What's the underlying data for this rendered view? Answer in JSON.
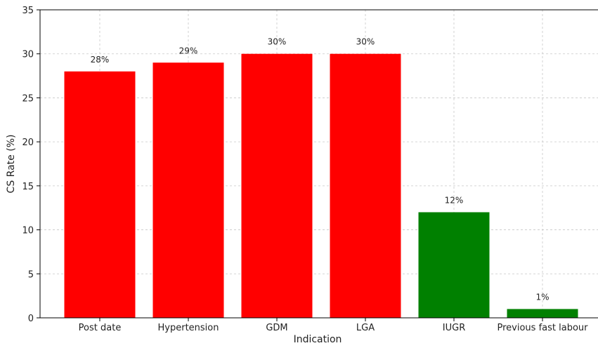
{
  "chart_data": {
    "type": "bar",
    "title": "",
    "xlabel": "Indication",
    "ylabel": "CS Rate (%)",
    "ylim": [
      0,
      35
    ],
    "yticks": [
      0,
      5,
      10,
      15,
      20,
      25,
      30,
      35
    ],
    "grid": true,
    "categories": [
      "Post date",
      "Hypertension",
      "GDM",
      "LGA",
      "IUGR",
      "Previous fast labour"
    ],
    "values": [
      28,
      29,
      30,
      30,
      12,
      1
    ],
    "data_labels": [
      "28%",
      "29%",
      "30%",
      "30%",
      "12%",
      "1%"
    ],
    "bar_colors": [
      "#ff0000",
      "#ff0000",
      "#ff0000",
      "#ff0000",
      "#008000",
      "#008000"
    ]
  }
}
